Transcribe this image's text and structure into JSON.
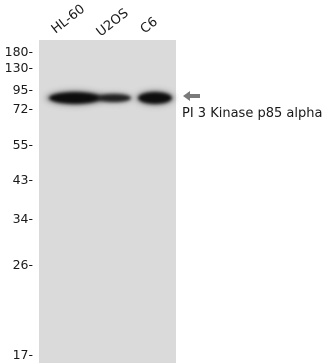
{
  "lanes": [
    {
      "label": "HL-60"
    },
    {
      "label": "U2OS"
    },
    {
      "label": "C6"
    }
  ],
  "markers": [
    {
      "label": "180-"
    },
    {
      "label": "130-"
    },
    {
      "label": "95-"
    },
    {
      "label": "72-"
    },
    {
      "label": "55-"
    },
    {
      "label": "43-"
    },
    {
      "label": "34-"
    },
    {
      "label": "26-"
    },
    {
      "label": "17-"
    }
  ],
  "target": {
    "label": "PI 3 Kinase p85 alpha",
    "arrow_icon": "arrow-left-icon"
  },
  "colors": {
    "membrane": "#dadada",
    "band": "#0d0d0d",
    "arrow": "#7a7a7a"
  }
}
